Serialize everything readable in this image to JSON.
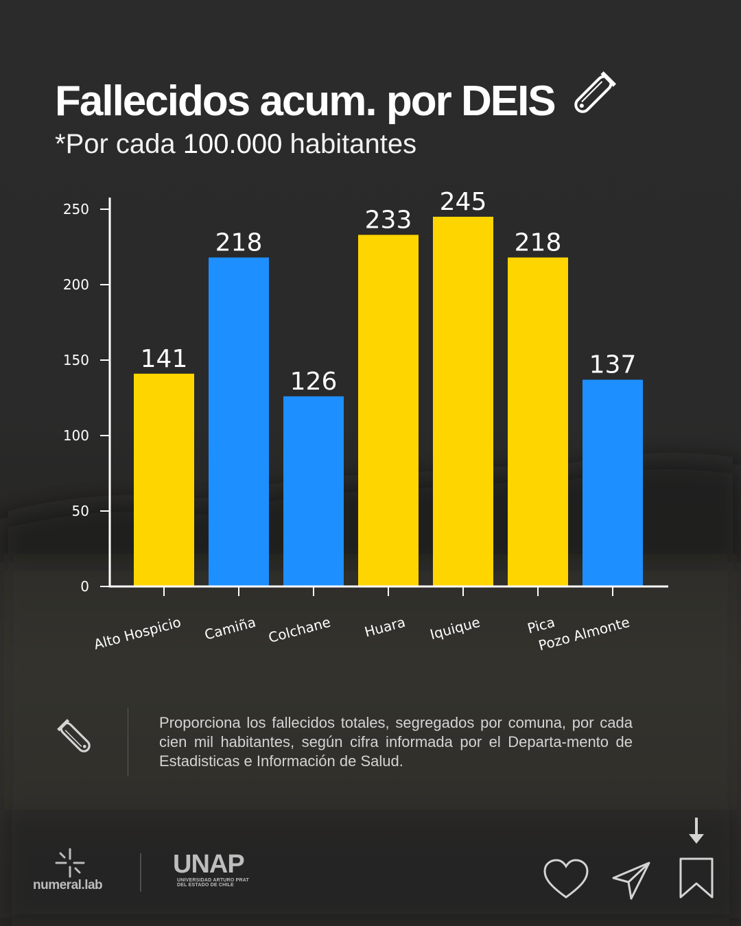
{
  "header": {
    "title": "Fallecidos acum. por DEIS",
    "subtitle_prefix": "*Por cada ",
    "subtitle_number": "100.000",
    "subtitle_suffix": " habitantes",
    "icon": "test-tube-icon",
    "icon_label": "CORONAVIRUS"
  },
  "chart_data": {
    "type": "bar",
    "categories": [
      "Alto Hospicio",
      "Camiña",
      "Colchane",
      "Huara",
      "Iquique",
      "Pica",
      "Pozo Almonte"
    ],
    "values": [
      141,
      218,
      126,
      233,
      245,
      218,
      137
    ],
    "bar_colors": [
      "#FFD500",
      "#1E8FFF",
      "#1E8FFF",
      "#FFD500",
      "#FFD500",
      "#FFD500",
      "#1E8FFF"
    ],
    "data_labels": [
      "141",
      "218",
      "126",
      "233",
      "245",
      "218",
      "137"
    ],
    "yticks": [
      0,
      50,
      100,
      150,
      200,
      250
    ],
    "ylim": [
      0,
      250
    ],
    "grid": false,
    "title": "",
    "xlabel": "",
    "ylabel": ""
  },
  "description": {
    "text": "Proporciona los fallecidos totales, segregados por comuna, por cada cien mil habitantes, según cifra informada por el Departa-mento de Estadisticas e Información de Salud.",
    "icon": "test-tube-icon",
    "icon_label": "CORONAVIRUS"
  },
  "footer": {
    "numeral_logo": "numeral.lab",
    "unap_logo": "UNAP",
    "unap_subtitle": "UNIVERSIDAD ARTURO PRAT",
    "unap_subtitle2": "DEL ESTADO DE CHILE",
    "actions": [
      "heart-icon",
      "send-icon",
      "bookmark-icon",
      "download-arrow-icon"
    ]
  },
  "colors": {
    "yellow": "#FFD500",
    "blue": "#1E8FFF",
    "background": "#2a2a2a",
    "text": "#ffffff"
  }
}
